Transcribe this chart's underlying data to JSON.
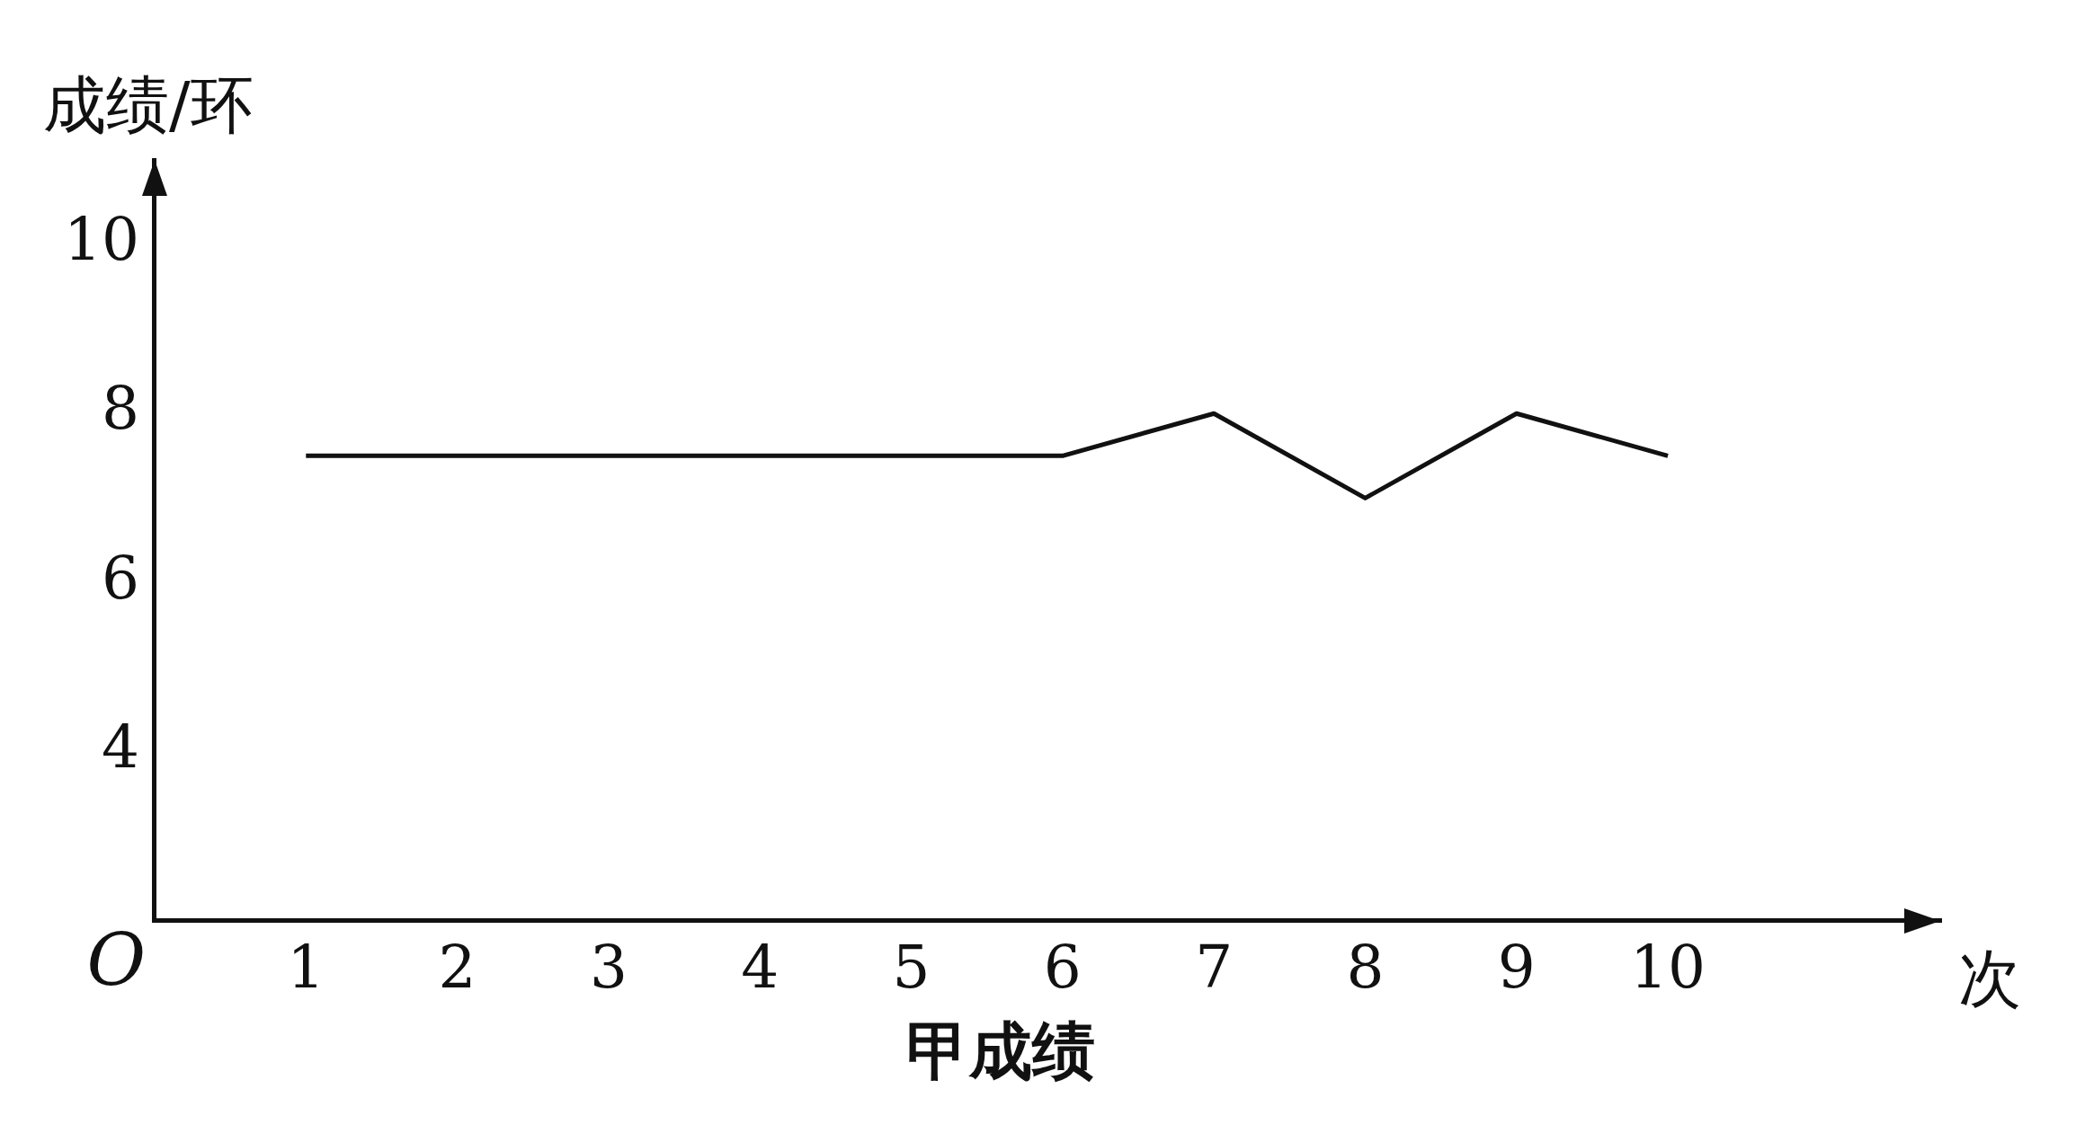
{
  "chart_data": {
    "type": "line",
    "title": "甲成绩",
    "xlabel": "次",
    "ylabel": "成绩/环",
    "annotations": [
      "O"
    ],
    "x": [
      1,
      2,
      3,
      4,
      5,
      6,
      7,
      8,
      9,
      10
    ],
    "series": [
      {
        "color": "#111111",
        "values": [
          7.5,
          7.5,
          7.5,
          7.5,
          7.5,
          7.5,
          8,
          7,
          8,
          7.5
        ]
      }
    ],
    "xlim": [
      0,
      11.8
    ],
    "xticks": [
      1,
      2,
      3,
      4,
      5,
      6,
      7,
      8,
      9,
      10
    ],
    "ylim": [
      2,
      11
    ],
    "yticks": [
      4,
      6,
      8,
      10
    ],
    "grid": false,
    "legend": false,
    "marker": "none",
    "line_style": "solid"
  }
}
